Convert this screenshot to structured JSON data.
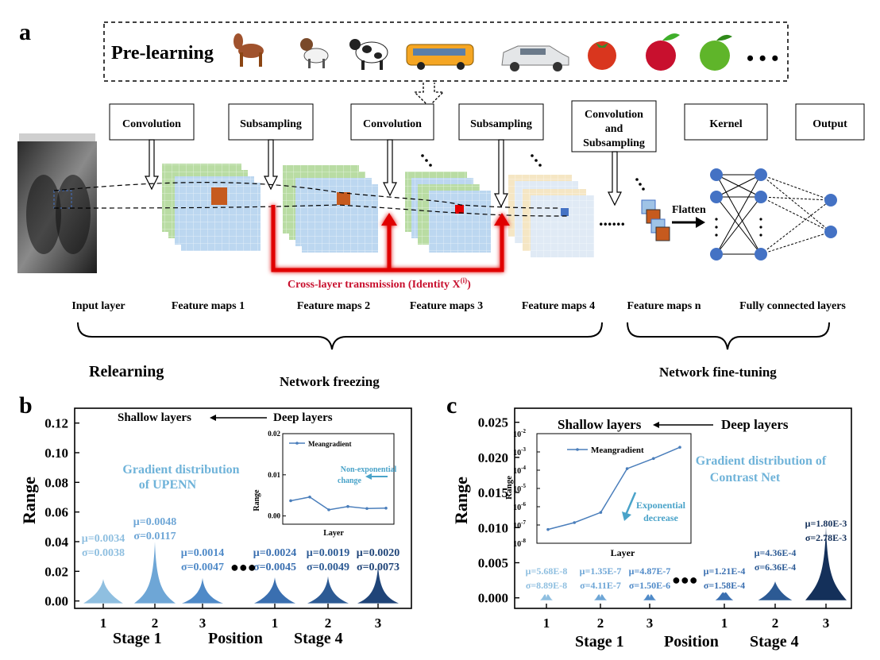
{
  "panel_a": {
    "label": "a",
    "prelearning": "Pre-learning",
    "prelearning_icons": [
      "horse-icon",
      "dog-icon",
      "cow-icon",
      "bus-icon",
      "car-icon",
      "tomato-icon",
      "red-apple-icon",
      "green-apple-icon"
    ],
    "ellipsis": "• • •",
    "ops": [
      "Convolution",
      "Subsampling",
      "Convolution",
      "Subsampling",
      "Convolution",
      "and",
      "Subsampling",
      "Kernel",
      "Output"
    ],
    "layer_labels": [
      "Input layer",
      "Feature maps 1",
      "Feature maps 2",
      "Feature maps 3",
      "Feature maps 4",
      "Feature maps n",
      "Fully connected layers"
    ],
    "flatten": "Flatten",
    "cross_layer": "Cross-layer transmission (Identity X",
    "cross_layer_sup": "(i)",
    "cross_layer_end": ")",
    "relearning": "Relearning",
    "freezing": "Network freezing",
    "finetuning": "Network fine-tuning",
    "colors": {
      "red": "#c8102e",
      "blue_node": "#4472c4",
      "map_blue": "#bcd7f0",
      "map_green": "#b9dca3",
      "map_orange": "#c65a1e"
    }
  },
  "panel_b": {
    "label": "b",
    "ylabel": "Range",
    "yticks": [
      "0.12",
      "0.10",
      "0.08",
      "0.06",
      "0.04",
      "0.02",
      "0.00"
    ],
    "xticks": [
      "1",
      "2",
      "3",
      "1",
      "2",
      "3"
    ],
    "stage1": "Stage 1",
    "position": "Position",
    "stage4": "Stage 4",
    "shallow": "Shallow layers",
    "deep": "Deep layers",
    "title1": "Gradient distribution",
    "title2": "of UPENN",
    "stats": [
      {
        "mu": "μ=0.0034",
        "sigma": "σ=0.0038"
      },
      {
        "mu": "μ=0.0048",
        "sigma": "σ=0.0117"
      },
      {
        "mu": "μ=0.0014",
        "sigma": "σ=0.0047"
      },
      {
        "mu": "μ=0.0024",
        "sigma": "σ=0.0045"
      },
      {
        "mu": "μ=0.0019",
        "sigma": "σ=0.0049"
      },
      {
        "mu": "μ=0.0020",
        "sigma": "σ=0.0073"
      }
    ],
    "inset": {
      "legend": "Meangradient",
      "ylabel": "Range",
      "xlabel": "Layer",
      "yticks": [
        "0.02",
        "0.01",
        "0.00"
      ],
      "annotation1": "Non-exponential",
      "annotation2": "change"
    }
  },
  "panel_c": {
    "label": "c",
    "ylabel": "Range",
    "yticks": [
      "0.025",
      "0.020",
      "0.015",
      "0.010",
      "0.005",
      "0.000"
    ],
    "xticks": [
      "1",
      "2",
      "3",
      "1",
      "2",
      "3"
    ],
    "stage1": "Stage 1",
    "position": "Position",
    "stage4": "Stage 4",
    "shallow": "Shallow layers",
    "deep": "Deep layers",
    "title1": "Gradient distribution of",
    "title2": "Contrast Net",
    "stats": [
      {
        "mu": "μ=5.68E-8",
        "sigma": "σ=8.89E-8"
      },
      {
        "mu": "μ=1.35E-7",
        "sigma": "σ=4.11E-7"
      },
      {
        "mu": "μ=4.87E-7",
        "sigma": "σ=1.50E-6"
      },
      {
        "mu": "μ=1.21E-4",
        "sigma": "σ=1.58E-4"
      },
      {
        "mu": "μ=4.36E-4",
        "sigma": "σ=6.36E-4"
      },
      {
        "mu": "μ=1.80E-3",
        "sigma": "σ=2.78E-3"
      }
    ],
    "inset": {
      "legend": "Meangradient",
      "ylabel": "Range",
      "xlabel": "Layer",
      "yticks": [
        "10",
        "10",
        "10",
        "10",
        "10",
        "10",
        "10"
      ],
      "ysups": [
        "-2",
        "-3",
        "-4",
        "-5",
        "-6",
        "-7",
        "-8"
      ],
      "annotation1": "Exponential",
      "annotation2": "decrease"
    }
  },
  "chart_data": [
    {
      "type": "violin",
      "categories": [
        "1",
        "2",
        "3",
        "1",
        "2",
        "3"
      ],
      "groups": [
        "Stage 1",
        "Stage 1",
        "Stage 1",
        "Stage 4",
        "Stage 4",
        "Stage 4"
      ],
      "mean": [
        0.0034,
        0.0048,
        0.0014,
        0.0024,
        0.0019,
        0.002
      ],
      "std": [
        0.0038,
        0.0117,
        0.0047,
        0.0045,
        0.0049,
        0.0073
      ],
      "ylabel": "Range",
      "ylim": [
        -0.005,
        0.13
      ],
      "colors": [
        "#8fbfe0",
        "#6ea6d6",
        "#4f8ac8",
        "#3a6fb0",
        "#2c5a94",
        "#1f4478"
      ]
    },
    {
      "type": "line",
      "series": [
        {
          "name": "Meangradient",
          "values": [
            0.0037,
            0.0046,
            0.0015,
            0.0023,
            0.0018,
            0.0019
          ]
        }
      ],
      "ylabel": "Range",
      "xlabel": "Layer",
      "ylim": [
        -0.002,
        0.02
      ]
    },
    {
      "type": "violin",
      "categories": [
        "1",
        "2",
        "3",
        "1",
        "2",
        "3"
      ],
      "groups": [
        "Stage 1",
        "Stage 1",
        "Stage 1",
        "Stage 4",
        "Stage 4",
        "Stage 4"
      ],
      "mean": [
        5.68e-08,
        1.35e-07,
        4.87e-07,
        0.000121,
        0.000436,
        0.0018
      ],
      "std": [
        8.89e-08,
        4.11e-07,
        1.5e-06,
        0.000158,
        0.000636,
        0.00278
      ],
      "ylabel": "Range",
      "ylim": [
        -0.0015,
        0.027
      ],
      "colors": [
        "#8fbfe0",
        "#6ea6d6",
        "#4f8ac8",
        "#3a6fb0",
        "#2c5a94",
        "#14305a"
      ]
    },
    {
      "type": "line",
      "series": [
        {
          "name": "Meangradient",
          "values": [
            5.68e-08,
            1.35e-07,
            4.87e-07,
            0.000121,
            0.000436,
            0.0018
          ]
        }
      ],
      "ylabel": "Range",
      "xlabel": "Layer",
      "yscale": "log",
      "ylim": [
        1e-08,
        0.01
      ]
    }
  ]
}
